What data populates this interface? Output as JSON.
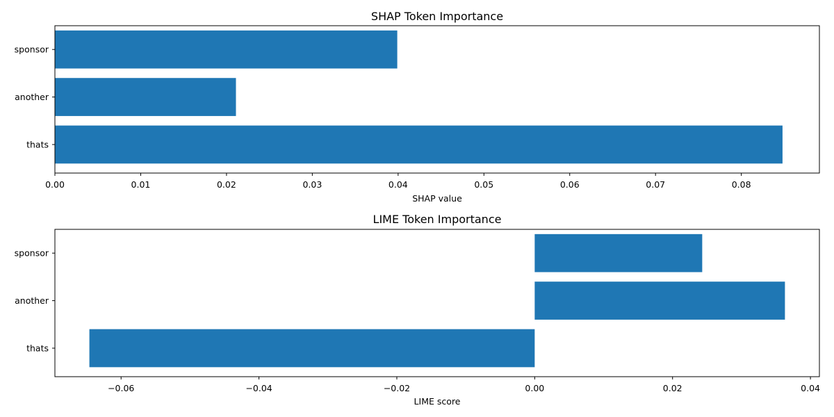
{
  "chart_data": [
    {
      "type": "bar",
      "orientation": "horizontal",
      "title": "SHAP Token Importance",
      "xlabel": "SHAP value",
      "ylabel": "",
      "categories": [
        "sponsor",
        "another",
        "thats"
      ],
      "values": [
        0.0399,
        0.0211,
        0.0848
      ],
      "xlim": [
        0.0,
        0.0891
      ],
      "xticks": [
        0.0,
        0.01,
        0.02,
        0.03,
        0.04,
        0.05,
        0.06,
        0.07,
        0.08
      ],
      "xtick_labels": [
        "0.00",
        "0.01",
        "0.02",
        "0.03",
        "0.04",
        "0.05",
        "0.06",
        "0.07",
        "0.08"
      ],
      "grid": false,
      "bar_color": "#1f77b4"
    },
    {
      "type": "bar",
      "orientation": "horizontal",
      "title": "LIME Token Importance",
      "xlabel": "LIME score",
      "ylabel": "",
      "categories": [
        "sponsor",
        "another",
        "thats"
      ],
      "values": [
        0.0243,
        0.0363,
        -0.0646
      ],
      "xlim": [
        -0.0696,
        0.0413
      ],
      "xticks": [
        -0.06,
        -0.04,
        -0.02,
        0.0,
        0.02,
        0.04
      ],
      "xtick_labels": [
        "−0.06",
        "−0.04",
        "−0.02",
        "0.00",
        "0.02",
        "0.04"
      ],
      "grid": false,
      "bar_color": "#1f77b4"
    }
  ]
}
